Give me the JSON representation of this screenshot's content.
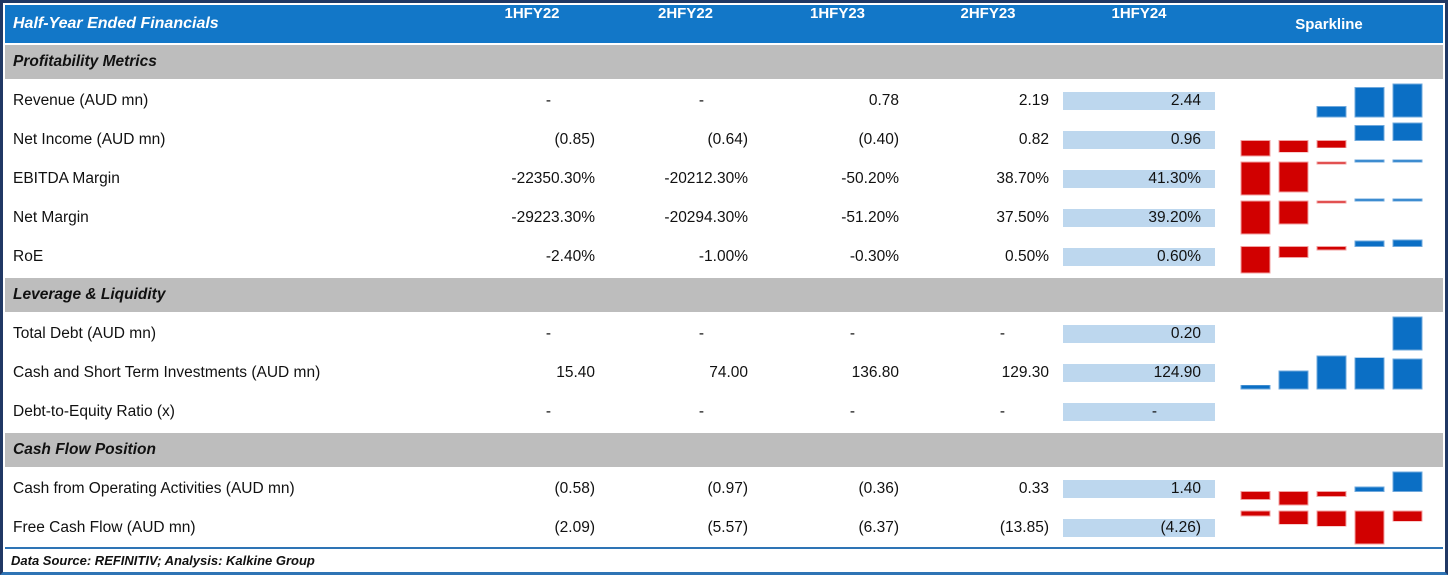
{
  "header": {
    "title": "Half-Year Ended Financials",
    "columns": [
      "1HFY22",
      "2HFY22",
      "1HFY23",
      "2HFY23",
      "1HFY24",
      "Sparkline"
    ],
    "highlighted_column": "1HFY24"
  },
  "sections": [
    {
      "title": "Profitability Metrics",
      "rows": [
        {
          "label": "Revenue (AUD mn)",
          "values": [
            "-",
            "-",
            "0.78",
            "2.19",
            "2.44"
          ],
          "spark": [
            null,
            null,
            0.78,
            2.19,
            2.44
          ]
        },
        {
          "label": "Net Income (AUD mn)",
          "values": [
            "(0.85)",
            "(0.64)",
            "(0.40)",
            "0.82",
            "0.96"
          ],
          "spark": [
            -0.85,
            -0.64,
            -0.4,
            0.82,
            0.96
          ]
        },
        {
          "label": "EBITDA Margin",
          "values": [
            "-22350.30%",
            "-20212.30%",
            "-50.20%",
            "38.70%",
            "41.30%"
          ],
          "spark": [
            -22350.3,
            -20212.3,
            -50.2,
            38.7,
            41.3
          ]
        },
        {
          "label": "Net Margin",
          "values": [
            "-29223.30%",
            "-20294.30%",
            "-51.20%",
            "37.50%",
            "39.20%"
          ],
          "spark": [
            -29223.3,
            -20294.3,
            -51.2,
            37.5,
            39.2
          ]
        },
        {
          "label": "RoE",
          "values": [
            "-2.40%",
            "-1.00%",
            "-0.30%",
            "0.50%",
            "0.60%"
          ],
          "spark": [
            -2.4,
            -1.0,
            -0.3,
            0.5,
            0.6
          ]
        }
      ]
    },
    {
      "title": "Leverage & Liquidity",
      "rows": [
        {
          "label": "Total Debt (AUD mn)",
          "values": [
            "-",
            "-",
            "-",
            "-",
            "0.20"
          ],
          "spark": [
            null,
            null,
            null,
            null,
            0.2
          ]
        },
        {
          "label": "Cash and Short Term Investments (AUD mn)",
          "values": [
            "15.40",
            "74.00",
            "136.80",
            "129.30",
            "124.90"
          ],
          "spark": [
            15.4,
            74.0,
            136.8,
            129.3,
            124.9
          ]
        },
        {
          "label": "Debt-to-Equity Ratio (x)",
          "values": [
            "-",
            "-",
            "-",
            "-",
            "-"
          ],
          "spark": [
            null,
            null,
            null,
            null,
            null
          ]
        }
      ]
    },
    {
      "title": "Cash Flow Position",
      "rows": [
        {
          "label": "Cash from Operating Activities (AUD mn)",
          "values": [
            "(0.58)",
            "(0.97)",
            "(0.36)",
            "0.33",
            "1.40"
          ],
          "spark": [
            -0.58,
            -0.97,
            -0.36,
            0.33,
            1.4
          ]
        },
        {
          "label": "Free Cash Flow (AUD mn)",
          "values": [
            "(2.09)",
            "(5.57)",
            "(6.37)",
            "(13.85)",
            "(4.26)"
          ],
          "spark": [
            -2.09,
            -5.57,
            -6.37,
            -13.85,
            -4.26
          ]
        }
      ]
    }
  ],
  "footer": {
    "text": "Data Source: REFINITIV; Analysis: Kalkine Group"
  },
  "colors": {
    "header_blue": "#1277C8",
    "section_band_gray": "#BDBDBD",
    "highlight_column_blue": "#BDD7EE",
    "sparkline_positive": "#0B6FC5",
    "sparkline_positive_edge": "#6FA8DC",
    "sparkline_negative": "#D10000",
    "sparkline_negative_edge": "#F2A2A2",
    "frame_border": "#203864",
    "separator_blue": "#2E74B5"
  },
  "chart_data": {
    "type": "bar",
    "note": "Win/loss style column sparklines per table row; x = half-year periods",
    "x": [
      "1HFY22",
      "2HFY22",
      "1HFY23",
      "2HFY23",
      "1HFY24"
    ],
    "series": [
      {
        "name": "Revenue (AUD mn)",
        "values": [
          null,
          null,
          0.78,
          2.19,
          2.44
        ]
      },
      {
        "name": "Net Income (AUD mn)",
        "values": [
          -0.85,
          -0.64,
          -0.4,
          0.82,
          0.96
        ]
      },
      {
        "name": "EBITDA Margin (%)",
        "values": [
          -22350.3,
          -20212.3,
          -50.2,
          38.7,
          41.3
        ]
      },
      {
        "name": "Net Margin (%)",
        "values": [
          -29223.3,
          -20294.3,
          -51.2,
          37.5,
          39.2
        ]
      },
      {
        "name": "RoE (%)",
        "values": [
          -2.4,
          -1.0,
          -0.3,
          0.5,
          0.6
        ]
      },
      {
        "name": "Total Debt (AUD mn)",
        "values": [
          null,
          null,
          null,
          null,
          0.2
        ]
      },
      {
        "name": "Cash and Short Term Investments (AUD mn)",
        "values": [
          15.4,
          74.0,
          136.8,
          129.3,
          124.9
        ]
      },
      {
        "name": "Debt-to-Equity Ratio (x)",
        "values": [
          null,
          null,
          null,
          null,
          null
        ]
      },
      {
        "name": "Cash from Operating Activities (AUD mn)",
        "values": [
          -0.58,
          -0.97,
          -0.36,
          0.33,
          1.4
        ]
      },
      {
        "name": "Free Cash Flow (AUD mn)",
        "values": [
          -2.09,
          -5.57,
          -6.37,
          -13.85,
          -4.26
        ]
      }
    ]
  }
}
